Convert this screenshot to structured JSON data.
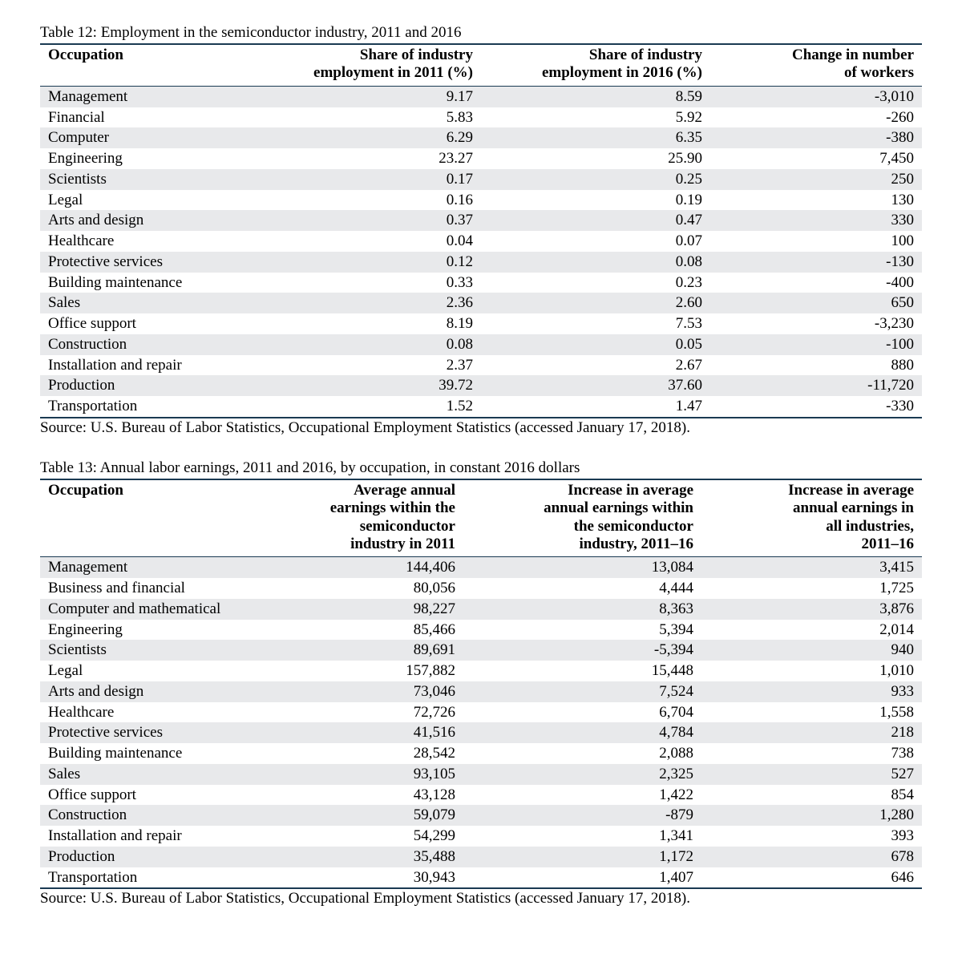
{
  "colors": {
    "rule": "#1a3a52",
    "stripe": "#e8e9eb",
    "background": "#ffffff",
    "text": "#000000"
  },
  "typography": {
    "font_family": "Times New Roman",
    "body_fontsize_pt": 14,
    "caption_fontsize_pt": 14
  },
  "table12": {
    "caption": "Table 12: Employment in the semiconductor industry, 2011 and 2016",
    "columns": [
      "Occupation",
      "Share of industry employment in 2011 (%)",
      "Share of industry employment in 2016 (%)",
      "Change in number of workers"
    ],
    "col_align": [
      "left",
      "right",
      "right",
      "right"
    ],
    "rows": [
      [
        "Management",
        "9.17",
        "8.59",
        "-3,010"
      ],
      [
        "Financial",
        "5.83",
        "5.92",
        "-260"
      ],
      [
        "Computer",
        "6.29",
        "6.35",
        "-380"
      ],
      [
        "Engineering",
        "23.27",
        "25.90",
        "7,450"
      ],
      [
        "Scientists",
        "0.17",
        "0.25",
        "250"
      ],
      [
        "Legal",
        "0.16",
        "0.19",
        "130"
      ],
      [
        "Arts and design",
        "0.37",
        "0.47",
        "330"
      ],
      [
        "Healthcare",
        "0.04",
        "0.07",
        "100"
      ],
      [
        "Protective services",
        "0.12",
        "0.08",
        "-130"
      ],
      [
        "Building maintenance",
        "0.33",
        "0.23",
        "-400"
      ],
      [
        "Sales",
        "2.36",
        "2.60",
        "650"
      ],
      [
        "Office support",
        "8.19",
        "7.53",
        "-3,230"
      ],
      [
        "Construction",
        "0.08",
        "0.05",
        "-100"
      ],
      [
        "Installation and repair",
        "2.37",
        "2.67",
        "880"
      ],
      [
        "Production",
        "39.72",
        "37.60",
        "-11,720"
      ],
      [
        "Transportation",
        "1.52",
        "1.47",
        "-330"
      ]
    ],
    "source": "Source: U.S. Bureau of Labor Statistics, Occupational Employment Statistics (accessed January 17, 2018)."
  },
  "table13": {
    "caption": "Table 13: Annual labor earnings, 2011 and 2016, by occupation, in constant 2016 dollars",
    "columns": [
      "Occupation",
      "Average annual earnings within the semiconductor industry in 2011",
      "Increase in average annual earnings within the semiconductor industry, 2011–16",
      "Increase in average annual earnings in all industries, 2011–16"
    ],
    "col_align": [
      "left",
      "right",
      "right",
      "right"
    ],
    "rows": [
      [
        "Management",
        "144,406",
        "13,084",
        "3,415"
      ],
      [
        "Business and financial",
        "80,056",
        "4,444",
        "1,725"
      ],
      [
        "Computer and mathematical",
        "98,227",
        "8,363",
        "3,876"
      ],
      [
        "Engineering",
        "85,466",
        "5,394",
        "2,014"
      ],
      [
        "Scientists",
        "89,691",
        "-5,394",
        "940"
      ],
      [
        "Legal",
        "157,882",
        "15,448",
        "1,010"
      ],
      [
        "Arts and design",
        "73,046",
        "7,524",
        "933"
      ],
      [
        "Healthcare",
        "72,726",
        "6,704",
        "1,558"
      ],
      [
        "Protective services",
        "41,516",
        "4,784",
        "218"
      ],
      [
        "Building maintenance",
        "28,542",
        "2,088",
        "738"
      ],
      [
        "Sales",
        "93,105",
        "2,325",
        "527"
      ],
      [
        "Office support",
        "43,128",
        "1,422",
        "854"
      ],
      [
        "Construction",
        "59,079",
        "-879",
        "1,280"
      ],
      [
        "Installation and repair",
        "54,299",
        "1,341",
        "393"
      ],
      [
        "Production",
        "35,488",
        "1,172",
        "678"
      ],
      [
        "Transportation",
        "30,943",
        "1,407",
        "646"
      ]
    ],
    "source": "Source: U.S. Bureau of Labor Statistics, Occupational Employment Statistics (accessed January 17, 2018)."
  }
}
